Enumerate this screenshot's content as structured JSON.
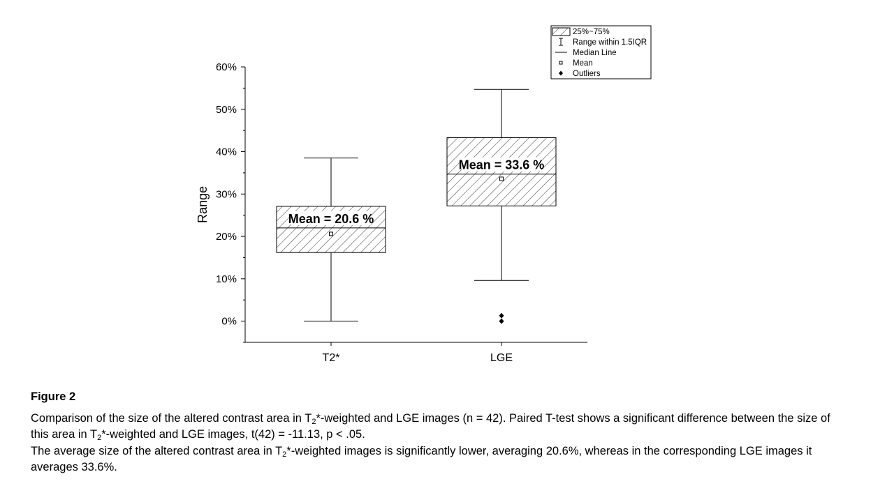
{
  "chart_data": {
    "type": "box",
    "ylabel": "Range",
    "xlabel": "",
    "ylim": [
      -5,
      60
    ],
    "yticks": [
      0,
      10,
      20,
      30,
      40,
      50,
      60
    ],
    "ytick_labels": [
      "0%",
      "10%",
      "20%",
      "30%",
      "40%",
      "50%",
      "60%"
    ],
    "categories": [
      "T2*",
      "LGE"
    ],
    "boxes": [
      {
        "name": "T2*",
        "whisker_low": 0,
        "q1": 16.2,
        "median": 22.0,
        "q3": 27.1,
        "whisker_high": 38.5,
        "mean": 20.6,
        "outliers": [],
        "annotation": "Mean = 20.6 %"
      },
      {
        "name": "LGE",
        "whisker_low": 9.6,
        "q1": 27.2,
        "median": 34.7,
        "q3": 43.3,
        "whisker_high": 54.7,
        "mean": 33.6,
        "outliers": [
          0,
          1.3
        ],
        "annotation": "Mean = 33.6 %"
      }
    ],
    "legend": {
      "placement": "top-right",
      "items": [
        "25%~75%",
        "Range within 1.5IQR",
        "Median Line",
        "Mean",
        "Outliers"
      ]
    }
  },
  "caption": {
    "title": "Figure 2",
    "p1_a": "Comparison of the size of the altered contrast area in T",
    "p1_sub": "2",
    "p1_b": "*-weighted and LGE images (n = 42). Paired T-test shows a significant difference between the size of",
    "p2_a": "this area in T",
    "p2_sub": "2",
    "p2_b": "*-weighted and LGE images, t(42) = -11.13, p < .05.",
    "p3_a": "The average size of the altered contrast area in T",
    "p3_sub": "2",
    "p3_b": "*-weighted images is significantly lower, averaging 20.6%, whereas in the corresponding LGE images it",
    "p4": "averages 33.6%."
  }
}
